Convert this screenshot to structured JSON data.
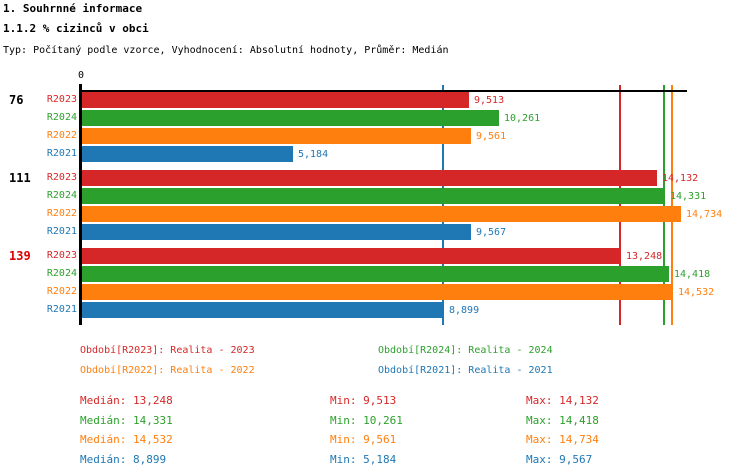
{
  "header": {
    "title": "1. Souhrnné informace",
    "subtitle": "1.1.2 % cizinců v obci",
    "meta": "Typ: Počítaný podle vzorce, Vyhodnocení: Absolutní hodnoty, Průměr: Medián"
  },
  "chart_data": {
    "type": "bar",
    "orientation": "horizontal",
    "title": "1.1.2 % cizinců v obci",
    "x_axis": {
      "origin_label": "0",
      "xlim": [
        0,
        14900
      ],
      "grid": false
    },
    "series": [
      {
        "id": "R2023",
        "name": "Realita - 2023",
        "color": "#d62728"
      },
      {
        "id": "R2024",
        "name": "Realita - 2024",
        "color": "#2ca02c"
      },
      {
        "id": "R2022",
        "name": "Realita - 2022",
        "color": "#ff7f0e"
      },
      {
        "id": "R2021",
        "name": "Realita - 2021",
        "color": "#1f77b4"
      }
    ],
    "groups": [
      {
        "label": "76",
        "label_color": "#000000",
        "values": {
          "R2023": 9513,
          "R2024": 10261,
          "R2022": 9561,
          "R2021": 5184
        }
      },
      {
        "label": "111",
        "label_color": "#000000",
        "values": {
          "R2023": 14132,
          "R2024": 14331,
          "R2022": 14734,
          "R2021": 9567
        }
      },
      {
        "label": "139",
        "label_color": "#dd0000",
        "values": {
          "R2023": 13248,
          "R2024": 14418,
          "R2022": 14532,
          "R2021": 8899
        }
      }
    ],
    "median_lines": {
      "R2023": 13248,
      "R2024": 14331,
      "R2022": 14532,
      "R2021": 8899
    }
  },
  "legend": {
    "items": [
      {
        "series": "R2023",
        "label": "Období[R2023]: Realita - 2023"
      },
      {
        "series": "R2024",
        "label": "Období[R2024]: Realita - 2024"
      },
      {
        "series": "R2022",
        "label": "Období[R2022]: Realita - 2022"
      },
      {
        "series": "R2021",
        "label": "Období[R2021]: Realita - 2021"
      }
    ]
  },
  "stats": {
    "labels": {
      "median": "Medián",
      "min": "Min",
      "max": "Max"
    },
    "rows": [
      {
        "series": "R2023",
        "median": "13,248",
        "min": "9,513",
        "max": "14,132"
      },
      {
        "series": "R2024",
        "median": "14,331",
        "min": "10,261",
        "max": "14,418"
      },
      {
        "series": "R2022",
        "median": "14,532",
        "min": "9,561",
        "max": "14,734"
      },
      {
        "series": "R2021",
        "median": "8,899",
        "min": "5,184",
        "max": "9,567"
      }
    ]
  }
}
